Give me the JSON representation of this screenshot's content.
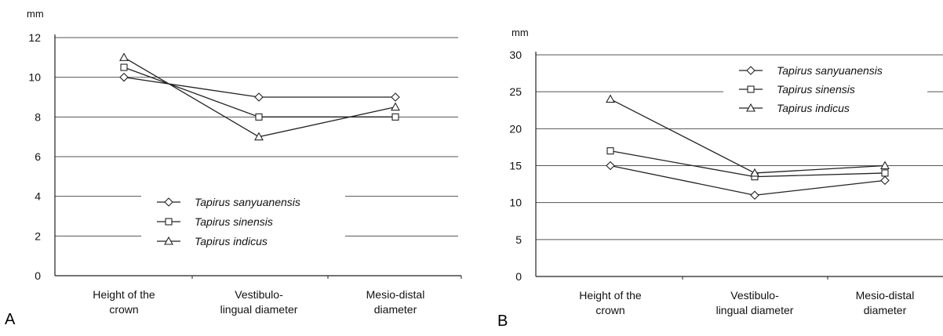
{
  "chart_data": [
    {
      "type": "line",
      "panel_label": "A",
      "ylabel": "mm",
      "ylim": [
        0,
        12
      ],
      "yticks": [
        0,
        2,
        4,
        6,
        8,
        10,
        12
      ],
      "categories": [
        [
          "Height of the",
          "crown"
        ],
        [
          "Vestibulo-",
          "lingual diameter"
        ],
        [
          "Mesio-distal",
          "diameter"
        ]
      ],
      "grid": true,
      "legend_position": "bottom-center",
      "series": [
        {
          "name": "Tapirus sanyuanensis",
          "marker": "diamond",
          "values": [
            10,
            9,
            9
          ]
        },
        {
          "name": "Tapirus sinensis",
          "marker": "square",
          "values": [
            10.5,
            8,
            8
          ]
        },
        {
          "name": "Tapirus indicus",
          "marker": "triangle",
          "values": [
            11,
            7,
            8.5
          ]
        }
      ]
    },
    {
      "type": "line",
      "panel_label": "B",
      "ylabel": "mm",
      "ylim": [
        0,
        30
      ],
      "yticks": [
        0,
        5,
        10,
        15,
        20,
        25,
        30
      ],
      "categories": [
        [
          "Height of the",
          "crown"
        ],
        [
          "Vestibulo-",
          "lingual diameter"
        ],
        [
          "Mesio-distal",
          "diameter"
        ]
      ],
      "grid": true,
      "legend_position": "top-right",
      "series": [
        {
          "name": "Tapirus sanyuanensis",
          "marker": "diamond",
          "values": [
            15,
            11,
            13
          ]
        },
        {
          "name": "Tapirus sinensis",
          "marker": "square",
          "values": [
            17,
            13.5,
            14
          ]
        },
        {
          "name": "Tapirus indicus",
          "marker": "triangle",
          "values": [
            24,
            14,
            15
          ]
        }
      ]
    }
  ]
}
